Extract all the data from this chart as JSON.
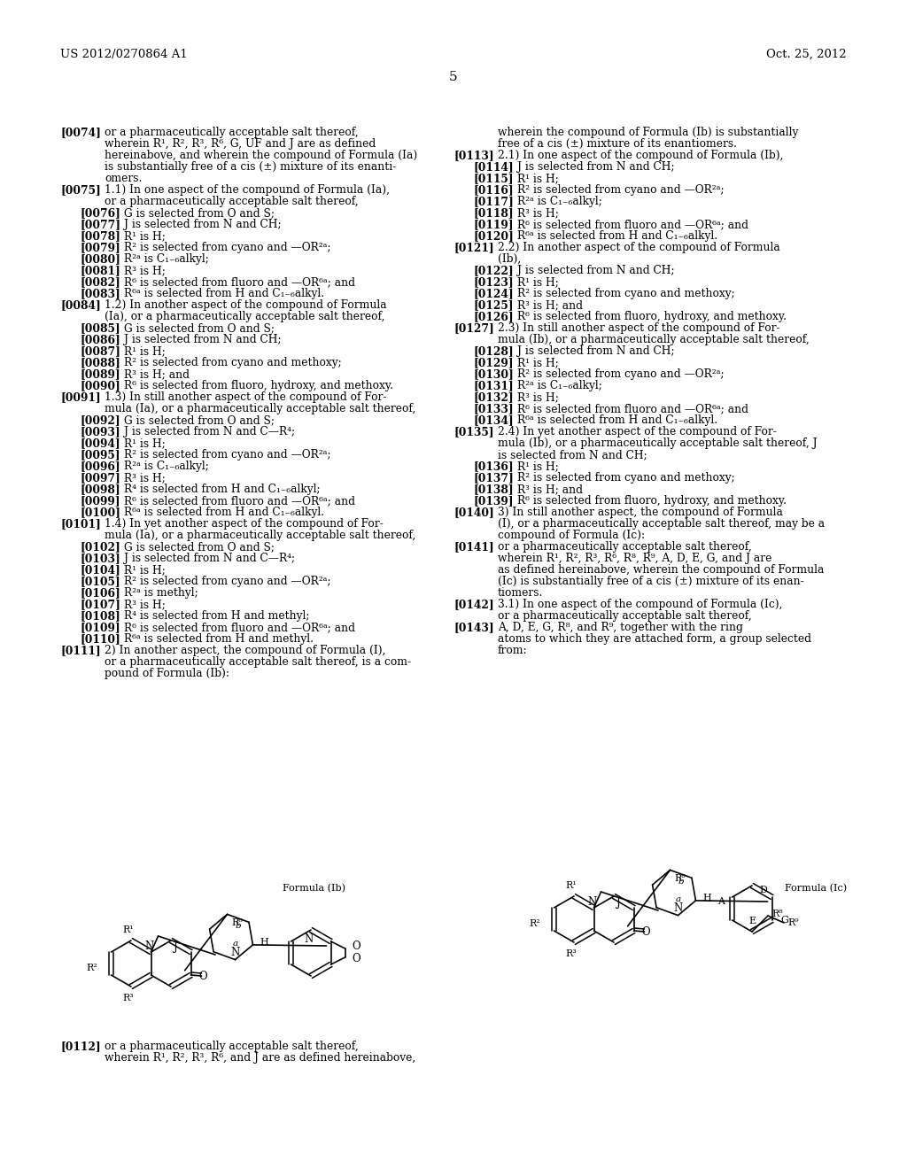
{
  "background_color": "#ffffff",
  "header_left": "US 2012/0270864 A1",
  "header_right": "Oct. 25, 2012",
  "page_number": "5",
  "text_color": "#000000",
  "left_entries": [
    {
      "tag": "[0074]",
      "indent": 0,
      "lines": [
        "or a pharmaceutically acceptable salt thereof,",
        "wherein R¹, R², R³, R⁶, G, UF and J are as defined",
        "hereinabove, and wherein the compound of Formula (Ia)",
        "is substantially free of a cis (±) mixture of its enanti-",
        "omers."
      ]
    },
    {
      "tag": "[0075]",
      "indent": 0,
      "lines": [
        "1.1) In one aspect of the compound of Formula (Ia),",
        "or a pharmaceutically acceptable salt thereof,"
      ]
    },
    {
      "tag": "[0076]",
      "indent": 1,
      "lines": [
        "G is selected from O and S;"
      ]
    },
    {
      "tag": "[0077]",
      "indent": 1,
      "lines": [
        "J is selected from N and CH;"
      ]
    },
    {
      "tag": "[0078]",
      "indent": 1,
      "lines": [
        "R¹ is H;"
      ]
    },
    {
      "tag": "[0079]",
      "indent": 1,
      "lines": [
        "R² is selected from cyano and —OR²ᵃ;"
      ]
    },
    {
      "tag": "[0080]",
      "indent": 1,
      "lines": [
        "R²ᵃ is C₁₋₆alkyl;"
      ]
    },
    {
      "tag": "[0081]",
      "indent": 1,
      "lines": [
        "R³ is H;"
      ]
    },
    {
      "tag": "[0082]",
      "indent": 1,
      "lines": [
        "R⁶ is selected from fluoro and —OR⁶ᵃ; and"
      ]
    },
    {
      "tag": "[0083]",
      "indent": 1,
      "lines": [
        "R⁶ᵃ is selected from H and C₁₋₆alkyl."
      ]
    },
    {
      "tag": "[0084]",
      "indent": 0,
      "lines": [
        "1.2) In another aspect of the compound of Formula",
        "(Ia), or a pharmaceutically acceptable salt thereof,"
      ]
    },
    {
      "tag": "[0085]",
      "indent": 1,
      "lines": [
        "G is selected from O and S;"
      ]
    },
    {
      "tag": "[0086]",
      "indent": 1,
      "lines": [
        "J is selected from N and CH;"
      ]
    },
    {
      "tag": "[0087]",
      "indent": 1,
      "lines": [
        "R¹ is H;"
      ]
    },
    {
      "tag": "[0088]",
      "indent": 1,
      "lines": [
        "R² is selected from cyano and methoxy;"
      ]
    },
    {
      "tag": "[0089]",
      "indent": 1,
      "lines": [
        "R³ is H; and"
      ]
    },
    {
      "tag": "[0090]",
      "indent": 1,
      "lines": [
        "R⁶ is selected from fluoro, hydroxy, and methoxy."
      ]
    },
    {
      "tag": "[0091]",
      "indent": 0,
      "lines": [
        "1.3) In still another aspect of the compound of For-",
        "mula (Ia), or a pharmaceutically acceptable salt thereof,"
      ]
    },
    {
      "tag": "[0092]",
      "indent": 1,
      "lines": [
        "G is selected from O and S;"
      ]
    },
    {
      "tag": "[0093]",
      "indent": 1,
      "lines": [
        "J is selected from N and C—R⁴;"
      ]
    },
    {
      "tag": "[0094]",
      "indent": 1,
      "lines": [
        "R¹ is H;"
      ]
    },
    {
      "tag": "[0095]",
      "indent": 1,
      "lines": [
        "R² is selected from cyano and —OR²ᵃ;"
      ]
    },
    {
      "tag": "[0096]",
      "indent": 1,
      "lines": [
        "R²ᵃ is C₁₋₆alkyl;"
      ]
    },
    {
      "tag": "[0097]",
      "indent": 1,
      "lines": [
        "R³ is H;"
      ]
    },
    {
      "tag": "[0098]",
      "indent": 1,
      "lines": [
        "R⁴ is selected from H and C₁₋₆alkyl;"
      ]
    },
    {
      "tag": "[0099]",
      "indent": 1,
      "lines": [
        "R⁶ is selected from fluoro and —OR⁶ᵃ; and"
      ]
    },
    {
      "tag": "[0100]",
      "indent": 1,
      "lines": [
        "R⁶ᵃ is selected from H and C₁₋₆alkyl."
      ]
    },
    {
      "tag": "[0101]",
      "indent": 0,
      "lines": [
        "1.4) In yet another aspect of the compound of For-",
        "mula (Ia), or a pharmaceutically acceptable salt thereof,"
      ]
    },
    {
      "tag": "[0102]",
      "indent": 1,
      "lines": [
        "G is selected from O and S;"
      ]
    },
    {
      "tag": "[0103]",
      "indent": 1,
      "lines": [
        "J is selected from N and C—R⁴;"
      ]
    },
    {
      "tag": "[0104]",
      "indent": 1,
      "lines": [
        "R¹ is H;"
      ]
    },
    {
      "tag": "[0105]",
      "indent": 1,
      "lines": [
        "R² is selected from cyano and —OR²ᵃ;"
      ]
    },
    {
      "tag": "[0106]",
      "indent": 1,
      "lines": [
        "R²ᵃ is methyl;"
      ]
    },
    {
      "tag": "[0107]",
      "indent": 1,
      "lines": [
        "R³ is H;"
      ]
    },
    {
      "tag": "[0108]",
      "indent": 1,
      "lines": [
        "R⁴ is selected from H and methyl;"
      ]
    },
    {
      "tag": "[0109]",
      "indent": 1,
      "lines": [
        "R⁶ is selected from fluoro and —OR⁶ᵃ; and"
      ]
    },
    {
      "tag": "[0110]",
      "indent": 1,
      "lines": [
        "R⁶ᵃ is selected from H and methyl."
      ]
    },
    {
      "tag": "[0111]",
      "indent": 0,
      "lines": [
        "2) In another aspect, the compound of Formula (I),",
        "or a pharmaceutically acceptable salt thereof, is a com-",
        "pound of Formula (Ib):"
      ]
    }
  ],
  "right_entries": [
    {
      "tag": "",
      "indent": 0,
      "lines": [
        "wherein the compound of Formula (Ib) is substantially",
        "free of a cis (±) mixture of its enantiomers."
      ]
    },
    {
      "tag": "[0113]",
      "indent": 0,
      "lines": [
        "2.1) In one aspect of the compound of Formula (Ib),"
      ]
    },
    {
      "tag": "[0114]",
      "indent": 1,
      "lines": [
        "J is selected from N and CH;"
      ]
    },
    {
      "tag": "[0115]",
      "indent": 1,
      "lines": [
        "R¹ is H;"
      ]
    },
    {
      "tag": "[0116]",
      "indent": 1,
      "lines": [
        "R² is selected from cyano and —OR²ᵃ;"
      ]
    },
    {
      "tag": "[0117]",
      "indent": 1,
      "lines": [
        "R²ᵃ is C₁₋₆alkyl;"
      ]
    },
    {
      "tag": "[0118]",
      "indent": 1,
      "lines": [
        "R³ is H;"
      ]
    },
    {
      "tag": "[0119]",
      "indent": 1,
      "lines": [
        "R⁶ is selected from fluoro and —OR⁶ᵃ; and"
      ]
    },
    {
      "tag": "[0120]",
      "indent": 1,
      "lines": [
        "R⁶ᵃ is selected from H and C₁₋₆alkyl."
      ]
    },
    {
      "tag": "[0121]",
      "indent": 0,
      "lines": [
        "2.2) In another aspect of the compound of Formula",
        "(Ib),"
      ]
    },
    {
      "tag": "[0122]",
      "indent": 1,
      "lines": [
        "J is selected from N and CH;"
      ]
    },
    {
      "tag": "[0123]",
      "indent": 1,
      "lines": [
        "R¹ is H;"
      ]
    },
    {
      "tag": "[0124]",
      "indent": 1,
      "lines": [
        "R² is selected from cyano and methoxy;"
      ]
    },
    {
      "tag": "[0125]",
      "indent": 1,
      "lines": [
        "R³ is H; and"
      ]
    },
    {
      "tag": "[0126]",
      "indent": 1,
      "lines": [
        "R⁶ is selected from fluoro, hydroxy, and methoxy."
      ]
    },
    {
      "tag": "[0127]",
      "indent": 0,
      "lines": [
        "2.3) In still another aspect of the compound of For-",
        "mula (Ib), or a pharmaceutically acceptable salt thereof,"
      ]
    },
    {
      "tag": "[0128]",
      "indent": 1,
      "lines": [
        "J is selected from N and CH;"
      ]
    },
    {
      "tag": "[0129]",
      "indent": 1,
      "lines": [
        "R¹ is H;"
      ]
    },
    {
      "tag": "[0130]",
      "indent": 1,
      "lines": [
        "R² is selected from cyano and —OR²ᵃ;"
      ]
    },
    {
      "tag": "[0131]",
      "indent": 1,
      "lines": [
        "R²ᵃ is C₁₋₆alkyl;"
      ]
    },
    {
      "tag": "[0132]",
      "indent": 1,
      "lines": [
        "R³ is H;"
      ]
    },
    {
      "tag": "[0133]",
      "indent": 1,
      "lines": [
        "R⁶ is selected from fluoro and —OR⁶ᵃ; and"
      ]
    },
    {
      "tag": "[0134]",
      "indent": 1,
      "lines": [
        "R⁶ᵃ is selected from H and C₁₋₆alkyl."
      ]
    },
    {
      "tag": "[0135]",
      "indent": 0,
      "lines": [
        "2.4) In yet another aspect of the compound of For-",
        "mula (Ib), or a pharmaceutically acceptable salt thereof, J",
        "is selected from N and CH;"
      ]
    },
    {
      "tag": "[0136]",
      "indent": 1,
      "lines": [
        "R¹ is H;"
      ]
    },
    {
      "tag": "[0137]",
      "indent": 1,
      "lines": [
        "R² is selected from cyano and methoxy;"
      ]
    },
    {
      "tag": "[0138]",
      "indent": 1,
      "lines": [
        "R³ is H; and"
      ]
    },
    {
      "tag": "[0139]",
      "indent": 1,
      "lines": [
        "R⁶ is selected from fluoro, hydroxy, and methoxy."
      ]
    },
    {
      "tag": "[0140]",
      "indent": 0,
      "lines": [
        "3) In still another aspect, the compound of Formula",
        "(I), or a pharmaceutically acceptable salt thereof, may be a",
        "compound of Formula (Ic):"
      ]
    },
    {
      "tag": "[0141]",
      "indent": 0,
      "lines": [
        "or a pharmaceutically acceptable salt thereof,",
        "wherein R¹, R², R³, R⁶, R⁸, R⁹, A, D, E, G, and J are",
        "as defined hereinabove, wherein the compound of Formula",
        "(Ic) is substantially free of a cis (±) mixture of its enan-",
        "tiomers."
      ]
    },
    {
      "tag": "[0142]",
      "indent": 0,
      "lines": [
        "3.1) In one aspect of the compound of Formula (Ic),",
        "or a pharmaceutically acceptable salt thereof,"
      ]
    },
    {
      "tag": "[0143]",
      "indent": 0,
      "lines": [
        "A, D, E, G, R⁸, and R⁹, together with the ring",
        "atoms to which they are attached form, a group selected",
        "from:"
      ]
    }
  ]
}
